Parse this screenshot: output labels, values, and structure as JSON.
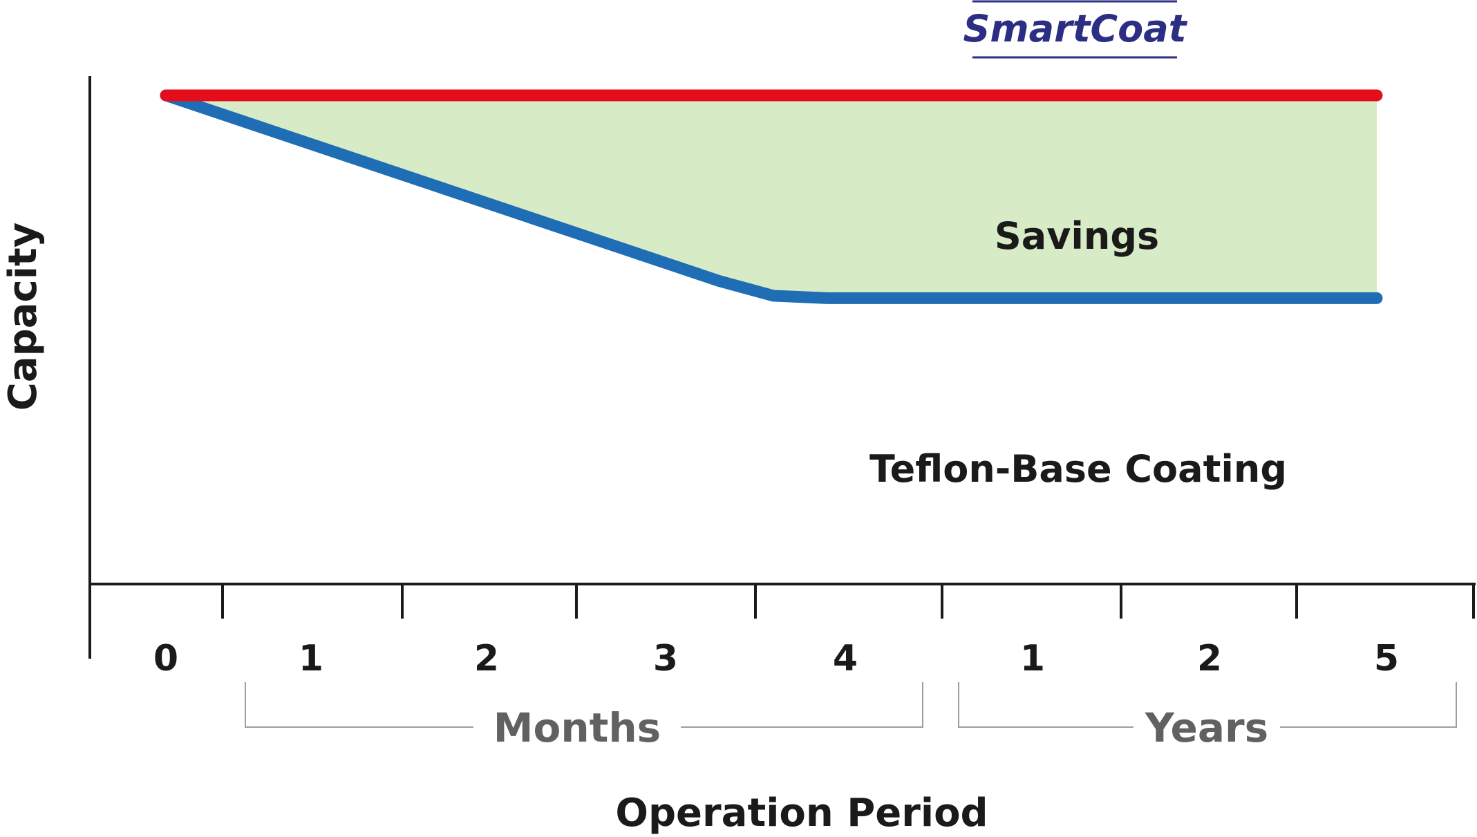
{
  "chart_data": {
    "type": "line",
    "title": "",
    "xlabel": "Operation Period",
    "ylabel": "Capacity",
    "grid": false,
    "categories": [
      "0",
      "1",
      "2",
      "3",
      "4",
      "1",
      "2",
      "5"
    ],
    "category_groups": [
      {
        "label": "Months",
        "from": 1,
        "to": 4
      },
      {
        "label": "Years",
        "from": 5,
        "to": 7
      }
    ],
    "ylim": [
      0,
      100
    ],
    "series": [
      {
        "name": "SmartCoat",
        "color": "#e30d1b",
        "points": [
          [
            0,
            100
          ],
          [
            7,
            100
          ]
        ]
      },
      {
        "name": "Teflon-Base Coating",
        "color": "#1f6db5",
        "points": [
          [
            0,
            100
          ],
          [
            3.3,
            62
          ],
          [
            3.6,
            59
          ],
          [
            3.9,
            58.5
          ],
          [
            7,
            58.5
          ]
        ]
      }
    ],
    "annotations": [
      {
        "text": "Savings",
        "between": [
          "SmartCoat",
          "Teflon-Base Coating"
        ],
        "fill_color": "#d7ecc6"
      }
    ]
  }
}
